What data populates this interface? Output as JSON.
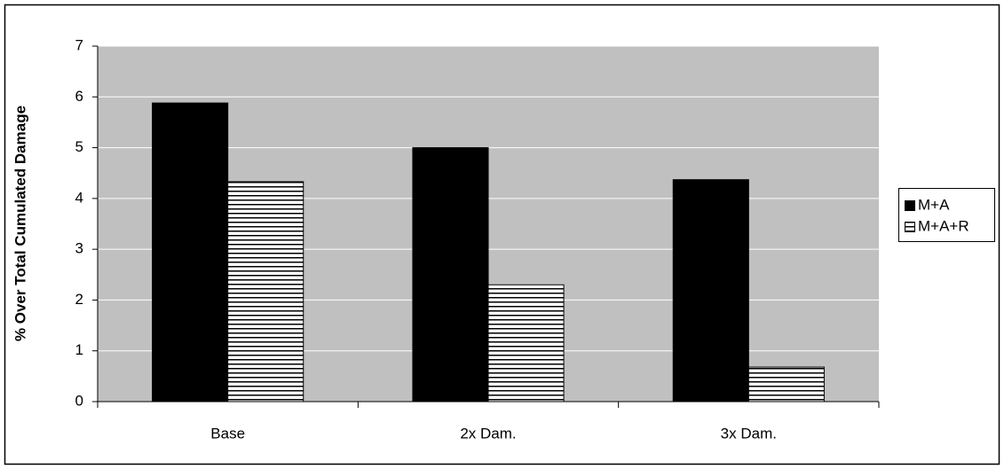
{
  "chart_data": {
    "type": "bar",
    "y_label": "% Over Total Cumulated Damage",
    "categories": [
      "Base",
      "2x Dam.",
      "3x Dam."
    ],
    "series": [
      {
        "name": "M+A",
        "color": "#000000",
        "hatch": false,
        "values": [
          5.88,
          5.0,
          4.37
        ]
      },
      {
        "name": "M+A+R",
        "color": "#000000",
        "hatch": true,
        "values": [
          4.33,
          2.3,
          0.68
        ]
      }
    ],
    "ylim": [
      0,
      7
    ],
    "yticks": [
      0,
      1,
      2,
      3,
      4,
      5,
      6,
      7
    ],
    "grid": true,
    "legend": "right",
    "plot_background": "#c0c0c0"
  }
}
